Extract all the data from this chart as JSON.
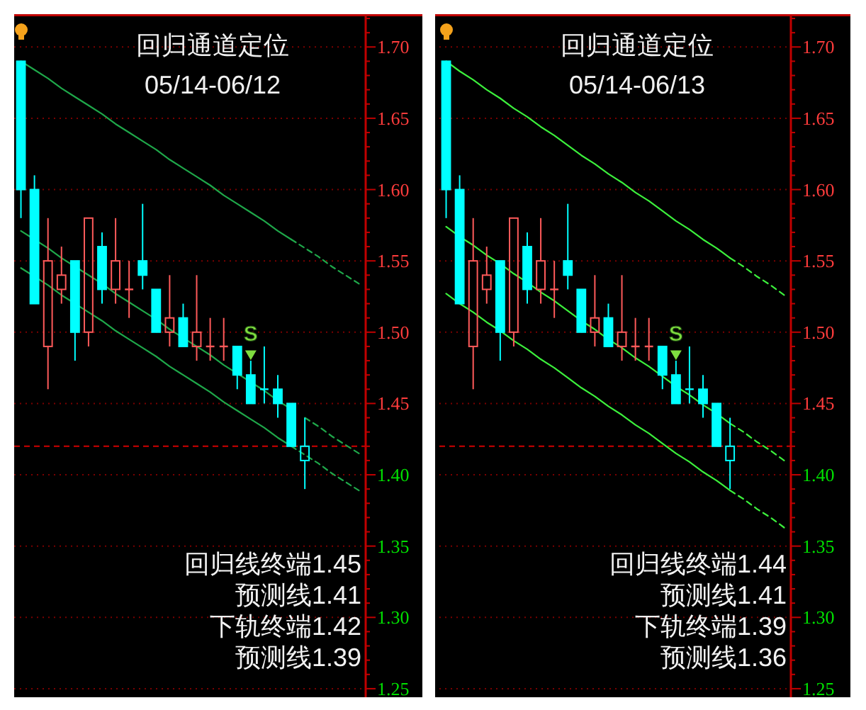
{
  "chart_data": [
    {
      "type": "candlestick",
      "title": "回归通道定位",
      "subtitle": "05/14-06/12",
      "categories": [
        null,
        null,
        null,
        null,
        null,
        null,
        null,
        null,
        null,
        null,
        null,
        null,
        null,
        null,
        null,
        null,
        null,
        null,
        null,
        null,
        null,
        null,
        null,
        null,
        null,
        null
      ],
      "ohlc": [
        [
          1.69,
          1.69,
          1.58,
          1.6
        ],
        [
          1.6,
          1.61,
          1.52,
          1.52
        ],
        [
          1.49,
          1.58,
          1.46,
          1.55
        ],
        [
          1.53,
          1.56,
          1.52,
          1.54
        ],
        [
          1.55,
          1.55,
          1.48,
          1.5
        ],
        [
          1.5,
          1.58,
          1.49,
          1.58
        ],
        [
          1.56,
          1.57,
          1.52,
          1.53
        ],
        [
          1.53,
          1.58,
          1.52,
          1.55
        ],
        [
          1.53,
          1.55,
          1.51,
          1.53
        ],
        [
          1.55,
          1.59,
          1.53,
          1.54
        ],
        [
          1.53,
          1.53,
          1.5,
          1.5
        ],
        [
          1.5,
          1.54,
          1.49,
          1.51
        ],
        [
          1.51,
          1.52,
          1.49,
          1.49
        ],
        [
          1.49,
          1.54,
          1.48,
          1.5
        ],
        [
          1.49,
          1.51,
          1.48,
          1.49
        ],
        [
          1.49,
          1.51,
          1.48,
          1.49
        ],
        [
          1.49,
          1.49,
          1.46,
          1.47
        ],
        [
          1.47,
          1.48,
          1.45,
          1.45
        ],
        [
          1.46,
          1.49,
          1.45,
          1.46
        ],
        [
          1.46,
          1.47,
          1.44,
          1.45
        ],
        [
          1.45,
          1.45,
          1.42,
          1.42
        ],
        [
          1.41,
          1.44,
          1.39,
          1.42
        ],
        null,
        null,
        null,
        null
      ],
      "colors": [
        "#00ffff",
        "#00ffff",
        "#ff5a5a",
        "#ff5a5a",
        "#00ffff",
        "#ff5a5a",
        "#00ffff",
        "#ff5a5a",
        "#ff5a5a",
        "#00ffff",
        "#00ffff",
        "#ff5a5a",
        "#00ffff",
        "#ff5a5a",
        "#ff5a5a",
        "#ff5a5a",
        "#00ffff",
        "#00ffff",
        "#00ffff",
        "#00ffff",
        "#00ffff",
        "#00ffff",
        null,
        null,
        null,
        null
      ],
      "series": [
        {
          "type": "line",
          "color": "#1fa84a",
          "line_style": "solid",
          "values": [
            1.69,
            1.684,
            1.678,
            1.671,
            1.665,
            1.659,
            1.653,
            1.646,
            1.64,
            1.634,
            1.628,
            1.621,
            1.615,
            1.609,
            1.603,
            1.596,
            1.59,
            1.584,
            1.578,
            1.571,
            1.565,
            null,
            null,
            null,
            null,
            null
          ]
        },
        {
          "type": "line",
          "color": "#1fa84a",
          "line_style": "dashed",
          "values": [
            null,
            null,
            null,
            null,
            null,
            null,
            null,
            null,
            null,
            null,
            null,
            null,
            null,
            null,
            null,
            null,
            null,
            null,
            null,
            null,
            1.565,
            1.559,
            1.553,
            1.546,
            1.54,
            1.534
          ]
        },
        {
          "type": "line",
          "color": "#1fa84a",
          "line_style": "solid",
          "values": [
            1.571,
            1.565,
            1.559,
            1.552,
            1.546,
            1.54,
            1.534,
            1.527,
            1.521,
            1.515,
            1.509,
            1.502,
            1.496,
            1.49,
            1.484,
            1.477,
            1.471,
            1.465,
            1.459,
            1.452,
            1.446,
            null,
            null,
            null,
            null,
            null
          ]
        },
        {
          "type": "line",
          "color": "#1fa84a",
          "line_style": "dashed",
          "values": [
            null,
            null,
            null,
            null,
            null,
            null,
            null,
            null,
            null,
            null,
            null,
            null,
            null,
            null,
            null,
            null,
            null,
            null,
            null,
            null,
            null,
            1.44,
            1.434,
            1.427,
            1.421,
            1.415
          ]
        },
        {
          "type": "line",
          "color": "#1fa84a",
          "line_style": "solid",
          "values": [
            1.545,
            1.539,
            1.533,
            1.526,
            1.52,
            1.514,
            1.508,
            1.501,
            1.495,
            1.489,
            1.483,
            1.476,
            1.47,
            1.464,
            1.458,
            1.451,
            1.445,
            1.439,
            1.433,
            1.426,
            1.42,
            null,
            null,
            null,
            null,
            null
          ]
        },
        {
          "type": "line",
          "color": "#1fa84a",
          "line_style": "dashed",
          "values": [
            null,
            null,
            null,
            null,
            null,
            null,
            null,
            null,
            null,
            null,
            null,
            null,
            null,
            null,
            null,
            null,
            null,
            null,
            null,
            null,
            1.42,
            1.414,
            1.408,
            1.401,
            1.395,
            1.389
          ]
        },
        {
          "type": "scatter",
          "name": "S",
          "color": "#7fdd3f",
          "marker": "triangle",
          "values": [
            null,
            null,
            null,
            null,
            null,
            null,
            null,
            null,
            null,
            null,
            null,
            null,
            null,
            null,
            null,
            null,
            null,
            1.484,
            null,
            null,
            null,
            null,
            null,
            null,
            null,
            null
          ]
        }
      ],
      "ylim": [
        1.244,
        1.723
      ],
      "yticks": [
        {
          "value": 1.25,
          "label": "1.25"
        },
        {
          "value": 1.26,
          "label": null
        },
        {
          "value": 1.27,
          "label": null
        },
        {
          "value": 1.28,
          "label": null
        },
        {
          "value": 1.29,
          "label": null
        },
        {
          "value": 1.3,
          "label": "1.30"
        },
        {
          "value": 1.31,
          "label": null
        },
        {
          "value": 1.32,
          "label": null
        },
        {
          "value": 1.33,
          "label": null
        },
        {
          "value": 1.34,
          "label": null
        },
        {
          "value": 1.35,
          "label": "1.35"
        },
        {
          "value": 1.36,
          "label": null
        },
        {
          "value": 1.37,
          "label": null
        },
        {
          "value": 1.38,
          "label": null
        },
        {
          "value": 1.39,
          "label": null
        },
        {
          "value": 1.4,
          "label": "1.40"
        },
        {
          "value": 1.41,
          "label": null
        },
        {
          "value": 1.42,
          "label": null
        },
        {
          "value": 1.43,
          "label": null
        },
        {
          "value": 1.44,
          "label": null
        },
        {
          "value": 1.45,
          "label": "1.45"
        },
        {
          "value": 1.46,
          "label": null
        },
        {
          "value": 1.47,
          "label": null
        },
        {
          "value": 1.48,
          "label": null
        },
        {
          "value": 1.49,
          "label": null
        },
        {
          "value": 1.5,
          "label": "1.50"
        },
        {
          "value": 1.51,
          "label": null
        },
        {
          "value": 1.52,
          "label": null
        },
        {
          "value": 1.53,
          "label": null
        },
        {
          "value": 1.54,
          "label": null
        },
        {
          "value": 1.55,
          "label": "1.55"
        },
        {
          "value": 1.56,
          "label": null
        },
        {
          "value": 1.57,
          "label": null
        },
        {
          "value": 1.58,
          "label": null
        },
        {
          "value": 1.59,
          "label": null
        },
        {
          "value": 1.6,
          "label": "1.60"
        },
        {
          "value": 1.61,
          "label": null
        },
        {
          "value": 1.62,
          "label": null
        },
        {
          "value": 1.63,
          "label": null
        },
        {
          "value": 1.64,
          "label": null
        },
        {
          "value": 1.65,
          "label": "1.65"
        },
        {
          "value": 1.66,
          "label": null
        },
        {
          "value": 1.67,
          "label": null
        },
        {
          "value": 1.68,
          "label": null
        },
        {
          "value": 1.69,
          "label": null
        },
        {
          "value": 1.7,
          "label": "1.70"
        },
        {
          "value": 1.71,
          "label": null
        },
        {
          "value": 1.72,
          "label": null
        }
      ],
      "grid": "y",
      "ref_lines": [
        {
          "axis": "y",
          "value": 1.42,
          "color": "#d00000",
          "line_style": "dashed"
        }
      ],
      "annotations": [
        "回归线终端1.45",
        "预测线1.41",
        "下轨终端1.42",
        "预测线1.39"
      ],
      "tick_labels": "y"
    },
    {
      "type": "candlestick",
      "title": "回归通道定位",
      "subtitle": "05/14-06/13",
      "categories": [
        null,
        null,
        null,
        null,
        null,
        null,
        null,
        null,
        null,
        null,
        null,
        null,
        null,
        null,
        null,
        null,
        null,
        null,
        null,
        null,
        null,
        null,
        null,
        null,
        null,
        null
      ],
      "ohlc": [
        [
          1.69,
          1.69,
          1.58,
          1.6
        ],
        [
          1.6,
          1.61,
          1.52,
          1.52
        ],
        [
          1.49,
          1.58,
          1.46,
          1.55
        ],
        [
          1.53,
          1.56,
          1.52,
          1.54
        ],
        [
          1.55,
          1.55,
          1.48,
          1.5
        ],
        [
          1.5,
          1.58,
          1.49,
          1.58
        ],
        [
          1.56,
          1.57,
          1.52,
          1.53
        ],
        [
          1.53,
          1.58,
          1.52,
          1.55
        ],
        [
          1.53,
          1.55,
          1.51,
          1.53
        ],
        [
          1.55,
          1.59,
          1.53,
          1.54
        ],
        [
          1.53,
          1.53,
          1.5,
          1.5
        ],
        [
          1.5,
          1.54,
          1.49,
          1.51
        ],
        [
          1.51,
          1.52,
          1.49,
          1.49
        ],
        [
          1.49,
          1.54,
          1.48,
          1.5
        ],
        [
          1.49,
          1.51,
          1.48,
          1.49
        ],
        [
          1.49,
          1.51,
          1.48,
          1.49
        ],
        [
          1.49,
          1.49,
          1.46,
          1.47
        ],
        [
          1.47,
          1.48,
          1.45,
          1.45
        ],
        [
          1.46,
          1.49,
          1.45,
          1.46
        ],
        [
          1.46,
          1.47,
          1.44,
          1.45
        ],
        [
          1.45,
          1.45,
          1.42,
          1.42
        ],
        [
          1.41,
          1.44,
          1.39,
          1.42
        ],
        null,
        null,
        null,
        null
      ],
      "colors": [
        "#00ffff",
        "#00ffff",
        "#ff5a5a",
        "#ff5a5a",
        "#00ffff",
        "#ff5a5a",
        "#00ffff",
        "#ff5a5a",
        "#ff5a5a",
        "#00ffff",
        "#00ffff",
        "#ff5a5a",
        "#00ffff",
        "#ff5a5a",
        "#ff5a5a",
        "#ff5a5a",
        "#00ffff",
        "#00ffff",
        "#00ffff",
        "#00ffff",
        "#00ffff",
        "#00ffff",
        null,
        null,
        null,
        null
      ],
      "series": [
        {
          "type": "line",
          "color": "#3cf03c",
          "line_style": "solid",
          "values": [
            1.69,
            1.683,
            1.677,
            1.67,
            1.664,
            1.657,
            1.651,
            1.644,
            1.638,
            1.631,
            1.624,
            1.618,
            1.611,
            1.605,
            1.598,
            1.592,
            1.585,
            1.578,
            1.572,
            1.565,
            1.559,
            1.552,
            null,
            null,
            null,
            null
          ]
        },
        {
          "type": "line",
          "color": "#3cf03c",
          "line_style": "dashed",
          "values": [
            null,
            null,
            null,
            null,
            null,
            null,
            null,
            null,
            null,
            null,
            null,
            null,
            null,
            null,
            null,
            null,
            null,
            null,
            null,
            null,
            null,
            1.552,
            1.546,
            1.539,
            1.533,
            1.526
          ]
        },
        {
          "type": "line",
          "color": "#3cf03c",
          "line_style": "solid",
          "values": [
            1.574,
            1.567,
            1.561,
            1.554,
            1.548,
            1.541,
            1.535,
            1.528,
            1.522,
            1.515,
            1.508,
            1.502,
            1.495,
            1.489,
            1.482,
            1.476,
            1.469,
            1.462,
            1.456,
            1.449,
            1.443,
            1.436,
            null,
            null,
            null,
            null
          ]
        },
        {
          "type": "line",
          "color": "#3cf03c",
          "line_style": "dashed",
          "values": [
            null,
            null,
            null,
            null,
            null,
            null,
            null,
            null,
            null,
            null,
            null,
            null,
            null,
            null,
            null,
            null,
            null,
            null,
            null,
            null,
            null,
            1.436,
            1.43,
            1.423,
            1.417,
            1.41
          ]
        },
        {
          "type": "line",
          "color": "#3cf03c",
          "line_style": "solid",
          "values": [
            1.527,
            1.52,
            1.514,
            1.507,
            1.501,
            1.494,
            1.488,
            1.481,
            1.475,
            1.468,
            1.461,
            1.455,
            1.448,
            1.442,
            1.435,
            1.429,
            1.422,
            1.415,
            1.409,
            1.402,
            1.396,
            1.389,
            null,
            null,
            null,
            null
          ]
        },
        {
          "type": "line",
          "color": "#3cf03c",
          "line_style": "dashed",
          "values": [
            null,
            null,
            null,
            null,
            null,
            null,
            null,
            null,
            null,
            null,
            null,
            null,
            null,
            null,
            null,
            null,
            null,
            null,
            null,
            null,
            null,
            1.389,
            1.383,
            1.376,
            1.37,
            1.363
          ]
        },
        {
          "type": "scatter",
          "name": "S",
          "color": "#7fdd3f",
          "marker": "triangle",
          "values": [
            null,
            null,
            null,
            null,
            null,
            null,
            null,
            null,
            null,
            null,
            null,
            null,
            null,
            null,
            null,
            null,
            null,
            1.484,
            null,
            null,
            null,
            null,
            null,
            null,
            null,
            null
          ]
        }
      ],
      "ylim": [
        1.244,
        1.723
      ],
      "yticks": [
        {
          "value": 1.25,
          "label": "1.25"
        },
        {
          "value": 1.26,
          "label": null
        },
        {
          "value": 1.27,
          "label": null
        },
        {
          "value": 1.28,
          "label": null
        },
        {
          "value": 1.29,
          "label": null
        },
        {
          "value": 1.3,
          "label": "1.30"
        },
        {
          "value": 1.31,
          "label": null
        },
        {
          "value": 1.32,
          "label": null
        },
        {
          "value": 1.33,
          "label": null
        },
        {
          "value": 1.34,
          "label": null
        },
        {
          "value": 1.35,
          "label": "1.35"
        },
        {
          "value": 1.36,
          "label": null
        },
        {
          "value": 1.37,
          "label": null
        },
        {
          "value": 1.38,
          "label": null
        },
        {
          "value": 1.39,
          "label": null
        },
        {
          "value": 1.4,
          "label": "1.40"
        },
        {
          "value": 1.41,
          "label": null
        },
        {
          "value": 1.42,
          "label": null
        },
        {
          "value": 1.43,
          "label": null
        },
        {
          "value": 1.44,
          "label": null
        },
        {
          "value": 1.45,
          "label": "1.45"
        },
        {
          "value": 1.46,
          "label": null
        },
        {
          "value": 1.47,
          "label": null
        },
        {
          "value": 1.48,
          "label": null
        },
        {
          "value": 1.49,
          "label": null
        },
        {
          "value": 1.5,
          "label": "1.50"
        },
        {
          "value": 1.51,
          "label": null
        },
        {
          "value": 1.52,
          "label": null
        },
        {
          "value": 1.53,
          "label": null
        },
        {
          "value": 1.54,
          "label": null
        },
        {
          "value": 1.55,
          "label": "1.55"
        },
        {
          "value": 1.56,
          "label": null
        },
        {
          "value": 1.57,
          "label": null
        },
        {
          "value": 1.58,
          "label": null
        },
        {
          "value": 1.59,
          "label": null
        },
        {
          "value": 1.6,
          "label": "1.60"
        },
        {
          "value": 1.61,
          "label": null
        },
        {
          "value": 1.62,
          "label": null
        },
        {
          "value": 1.63,
          "label": null
        },
        {
          "value": 1.64,
          "label": null
        },
        {
          "value": 1.65,
          "label": "1.65"
        },
        {
          "value": 1.66,
          "label": null
        },
        {
          "value": 1.67,
          "label": null
        },
        {
          "value": 1.68,
          "label": null
        },
        {
          "value": 1.69,
          "label": null
        },
        {
          "value": 1.7,
          "label": "1.70"
        },
        {
          "value": 1.71,
          "label": null
        },
        {
          "value": 1.72,
          "label": null
        }
      ],
      "grid": "y",
      "ref_lines": [
        {
          "axis": "y",
          "value": 1.42,
          "color": "#d00000",
          "line_style": "dashed"
        }
      ],
      "annotations": [
        "回归线终端1.44",
        "预测线1.41",
        "下轨终端1.39",
        "预测线1.36"
      ],
      "tick_labels": "y"
    }
  ]
}
